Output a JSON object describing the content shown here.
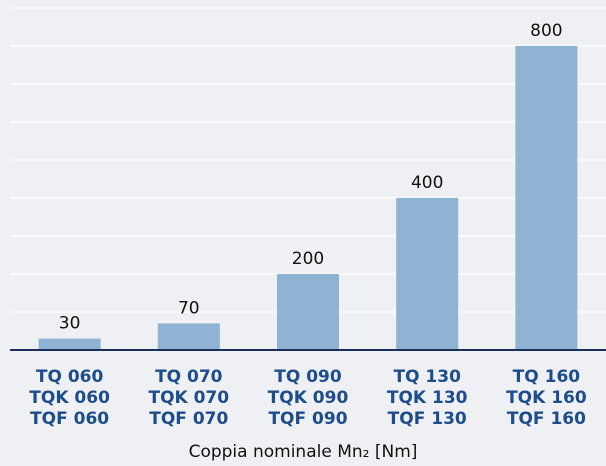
{
  "chart_data": {
    "type": "bar",
    "categories": [
      [
        "TQ 060",
        "TQK 060",
        "TQF 060"
      ],
      [
        "TQ 070",
        "TQK 070",
        "TQF 070"
      ],
      [
        "TQ 090",
        "TQK 090",
        "TQF 090"
      ],
      [
        "TQ 130",
        "TQK 130",
        "TQF 130"
      ],
      [
        "TQ 160",
        "TQK 160",
        "TQF 160"
      ]
    ],
    "values": [
      30,
      70,
      200,
      400,
      800
    ],
    "color": "#8fb3d3",
    "x_label": "Coppia nominale Mn₂ [Nm]",
    "ylim": [
      0,
      900
    ],
    "yticks": [
      0,
      100,
      200,
      300,
      400,
      500,
      600,
      700,
      800,
      900
    ],
    "grid": true
  }
}
